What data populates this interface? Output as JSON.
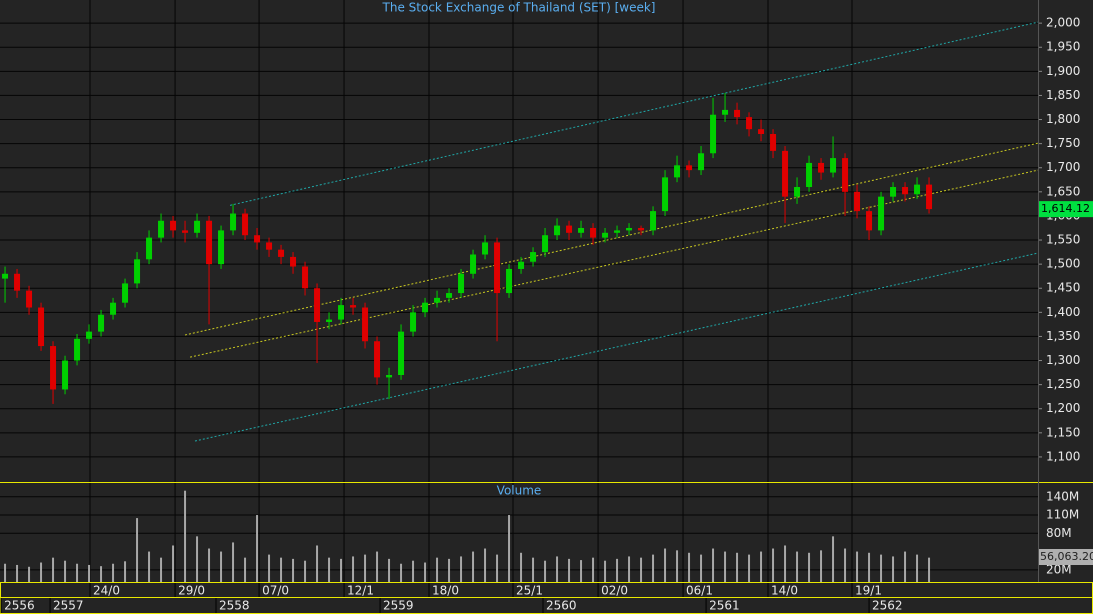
{
  "chart_data": {
    "type": "candlestick",
    "title": "The Stock Exchange of Thailand (SET) [week]",
    "volume_title": "Volume",
    "up_color": "#00d000",
    "down_color": "#e00000",
    "volume_color": "#a8a8a8",
    "grid": true,
    "xlim": [
      -0.42,
      86.08
    ],
    "ylim": [
      1048,
      2048
    ],
    "yticks": [
      {
        "value": 1100,
        "label": "1,100"
      },
      {
        "value": 1150,
        "label": "1,150"
      },
      {
        "value": 1200,
        "label": "1,200"
      },
      {
        "value": 1250,
        "label": "1,250"
      },
      {
        "value": 1300,
        "label": "1,300"
      },
      {
        "value": 1350,
        "label": "1,350"
      },
      {
        "value": 1400,
        "label": "1,400"
      },
      {
        "value": 1450,
        "label": "1,450"
      },
      {
        "value": 1500,
        "label": "1,500"
      },
      {
        "value": 1550,
        "label": "1,550"
      },
      {
        "value": 1600,
        "label": "1,600"
      },
      {
        "value": 1650,
        "label": "1,650"
      },
      {
        "value": 1700,
        "label": "1,700"
      },
      {
        "value": 1750,
        "label": "1,750"
      },
      {
        "value": 1800,
        "label": "1,800"
      },
      {
        "value": 1850,
        "label": "1,850"
      },
      {
        "value": 1900,
        "label": "1,900"
      },
      {
        "value": 1950,
        "label": "1,950"
      },
      {
        "value": 2000,
        "label": "2,000"
      }
    ],
    "last_price": {
      "value": 1614.12,
      "label": "1,614.12"
    },
    "y2lim": [
      0,
      161
    ],
    "y2ticks": [
      {
        "value": 20,
        "label": "20M"
      },
      {
        "value": 80,
        "label": "80M"
      },
      {
        "value": 110,
        "label": "110M"
      },
      {
        "value": 140,
        "label": "140M"
      }
    ],
    "volume_last_label": "56,063.20",
    "xticks": [
      {
        "value": 7.08,
        "label": "24/0"
      },
      {
        "value": 14.17,
        "label": "29/0"
      },
      {
        "value": 21.17,
        "label": "07/0"
      },
      {
        "value": 28.25,
        "label": "12/1"
      },
      {
        "value": 35.33,
        "label": "18/0"
      },
      {
        "value": 42.33,
        "label": "25/1"
      },
      {
        "value": 49.42,
        "label": "02/0"
      },
      {
        "value": 56.5,
        "label": "06/1"
      },
      {
        "value": 63.58,
        "label": "14/0"
      },
      {
        "value": 70.58,
        "label": "19/1"
      }
    ],
    "year_ticks": [
      {
        "value": -0.33,
        "label": "2556"
      },
      {
        "value": 3.75,
        "label": "2557"
      },
      {
        "value": 17.58,
        "label": "2558"
      },
      {
        "value": 31.25,
        "label": "2559"
      },
      {
        "value": 44.83,
        "label": "2560"
      },
      {
        "value": 58.42,
        "label": "2561"
      },
      {
        "value": 72,
        "label": "2562"
      }
    ],
    "open": [
      1470,
      1480,
      1445,
      1410,
      1330,
      1240,
      1300,
      1345,
      1360,
      1395,
      1420,
      1460,
      1510,
      1555,
      1590,
      1570,
      1565,
      1590,
      1500,
      1570,
      1605,
      1560,
      1545,
      1530,
      1515,
      1495,
      1450,
      1380,
      1385,
      1415,
      1410,
      1340,
      1265,
      1270,
      1360,
      1400,
      1420,
      1430,
      1440,
      1480,
      1520,
      1545,
      1440,
      1490,
      1505,
      1525,
      1560,
      1580,
      1565,
      1575,
      1555,
      1565,
      1570,
      1575,
      1570,
      1610,
      1680,
      1705,
      1695,
      1730,
      1810,
      1820,
      1805,
      1780,
      1770,
      1735,
      1640,
      1660,
      1710,
      1690,
      1720,
      1650,
      1610,
      1570,
      1640,
      1660,
      1645,
      1665
    ],
    "high": [
      1495,
      1490,
      1455,
      1420,
      1340,
      1310,
      1355,
      1375,
      1405,
      1430,
      1470,
      1525,
      1570,
      1605,
      1600,
      1590,
      1605,
      1600,
      1580,
      1625,
      1615,
      1575,
      1555,
      1540,
      1525,
      1505,
      1460,
      1400,
      1430,
      1430,
      1420,
      1350,
      1285,
      1375,
      1415,
      1430,
      1445,
      1450,
      1490,
      1530,
      1560,
      1555,
      1500,
      1515,
      1535,
      1575,
      1595,
      1590,
      1590,
      1585,
      1575,
      1580,
      1585,
      1580,
      1620,
      1695,
      1725,
      1715,
      1745,
      1845,
      1855,
      1835,
      1815,
      1800,
      1780,
      1745,
      1680,
      1725,
      1720,
      1765,
      1730,
      1665,
      1620,
      1650,
      1670,
      1670,
      1680,
      1680
    ],
    "low": [
      1420,
      1430,
      1395,
      1320,
      1210,
      1230,
      1290,
      1335,
      1350,
      1385,
      1410,
      1450,
      1500,
      1545,
      1555,
      1545,
      1555,
      1375,
      1490,
      1560,
      1550,
      1530,
      1515,
      1500,
      1480,
      1435,
      1295,
      1365,
      1375,
      1395,
      1325,
      1250,
      1220,
      1260,
      1350,
      1390,
      1410,
      1420,
      1430,
      1470,
      1510,
      1340,
      1430,
      1480,
      1495,
      1515,
      1550,
      1550,
      1555,
      1540,
      1545,
      1555,
      1560,
      1560,
      1560,
      1600,
      1670,
      1680,
      1685,
      1720,
      1795,
      1790,
      1765,
      1755,
      1720,
      1585,
      1625,
      1650,
      1675,
      1680,
      1600,
      1595,
      1550,
      1560,
      1630,
      1630,
      1635,
      1605
    ],
    "close": [
      1480,
      1445,
      1410,
      1330,
      1240,
      1300,
      1345,
      1360,
      1395,
      1420,
      1460,
      1510,
      1555,
      1590,
      1570,
      1565,
      1590,
      1500,
      1570,
      1605,
      1560,
      1545,
      1530,
      1515,
      1495,
      1450,
      1380,
      1385,
      1415,
      1410,
      1340,
      1265,
      1270,
      1360,
      1400,
      1420,
      1430,
      1440,
      1480,
      1520,
      1545,
      1440,
      1490,
      1505,
      1525,
      1560,
      1580,
      1565,
      1575,
      1555,
      1565,
      1570,
      1575,
      1570,
      1610,
      1680,
      1705,
      1695,
      1730,
      1810,
      1820,
      1805,
      1780,
      1770,
      1735,
      1640,
      1660,
      1710,
      1690,
      1720,
      1650,
      1610,
      1570,
      1640,
      1660,
      1645,
      1665,
      1614.12
    ],
    "volume": [
      30,
      28,
      25,
      32,
      40,
      35,
      30,
      28,
      26,
      30,
      34,
      105,
      50,
      40,
      60,
      150,
      75,
      55,
      50,
      65,
      40,
      110,
      45,
      40,
      38,
      35,
      60,
      40,
      38,
      42,
      45,
      50,
      38,
      30,
      35,
      32,
      40,
      38,
      42,
      50,
      55,
      45,
      110,
      48,
      40,
      35,
      42,
      38,
      36,
      40,
      35,
      38,
      42,
      40,
      45,
      55,
      52,
      48,
      45,
      55,
      50,
      48,
      45,
      50,
      55,
      60,
      50,
      48,
      52,
      75,
      55,
      50,
      48,
      45,
      42,
      50,
      45,
      40
    ],
    "trendlines": [
      {
        "color": "#1fa8a8",
        "x": [
          18.75,
          86.08
        ],
        "y": [
          1622,
          2002
        ]
      },
      {
        "color": "#1fa8a8",
        "x": [
          15.83,
          86.08
        ],
        "y": [
          1133,
          1523
        ]
      },
      {
        "color": "#c8c820",
        "x": [
          15,
          86.08
        ],
        "y": [
          1353,
          1751
        ]
      },
      {
        "color": "#c8c820",
        "x": [
          15.42,
          86.08
        ],
        "y": [
          1307,
          1695
        ]
      }
    ]
  }
}
